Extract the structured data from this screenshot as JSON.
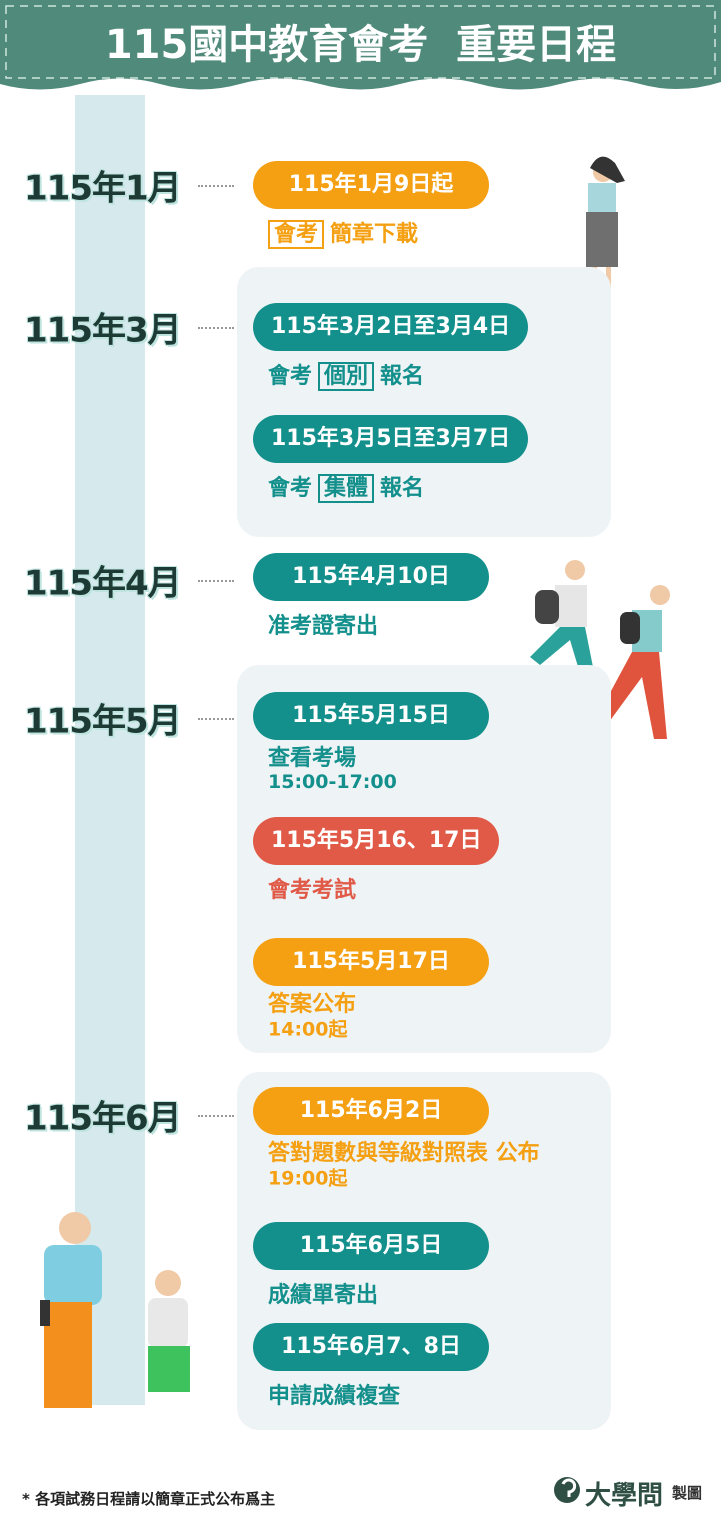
{
  "header": {
    "title": "115國中教育會考  重要日程"
  },
  "months": [
    {
      "label": "115年1月",
      "events": [
        {
          "date": "115年1月9日起",
          "color": "#f4a012",
          "desc": [
            {
              "text": "會考",
              "boxed": true
            },
            {
              "text": "簡章下載"
            }
          ]
        }
      ]
    },
    {
      "label": "115年3月",
      "events": [
        {
          "date": "115年3月2日至3月4日",
          "color": "#14908c",
          "desc": [
            {
              "text": "會考"
            },
            {
              "text": "個別",
              "boxed": true
            },
            {
              "text": "報名"
            }
          ]
        },
        {
          "date": "115年3月5日至3月7日",
          "color": "#14908c",
          "desc": [
            {
              "text": "會考"
            },
            {
              "text": "集體",
              "boxed": true
            },
            {
              "text": "報名"
            }
          ]
        }
      ]
    },
    {
      "label": "115年4月",
      "events": [
        {
          "date": "115年4月10日",
          "color": "#14908c",
          "desc": [
            {
              "text": "准考證寄出"
            }
          ]
        }
      ]
    },
    {
      "label": "115年5月",
      "events": [
        {
          "date": "115年5月15日",
          "color": "#14908c",
          "desc": [
            {
              "text": "查看考場"
            }
          ],
          "time": "15:00-17:00"
        },
        {
          "date": "115年5月16、17日",
          "color": "#e05a47",
          "desc": [
            {
              "text": "會考考試"
            }
          ]
        },
        {
          "date": "115年5月17日",
          "color": "#f4a012",
          "desc": [
            {
              "text": "答案公布"
            }
          ],
          "time": "14:00起"
        }
      ]
    },
    {
      "label": "115年6月",
      "events": [
        {
          "date": "115年6月2日",
          "color": "#f4a012",
          "desc": [
            {
              "text": "答對題數與等級對照表 公布"
            }
          ],
          "time": "19:00起"
        },
        {
          "date": "115年6月5日",
          "color": "#14908c",
          "desc": [
            {
              "text": "成績單寄出"
            }
          ]
        },
        {
          "date": "115年6月7、8日",
          "color": "#14908c",
          "desc": [
            {
              "text": "申請成績複查"
            }
          ]
        }
      ]
    }
  ],
  "footer": {
    "note": "* 各項試務日程請以簡章正式公布爲主",
    "brand": "大學問",
    "credit": "製圖"
  }
}
